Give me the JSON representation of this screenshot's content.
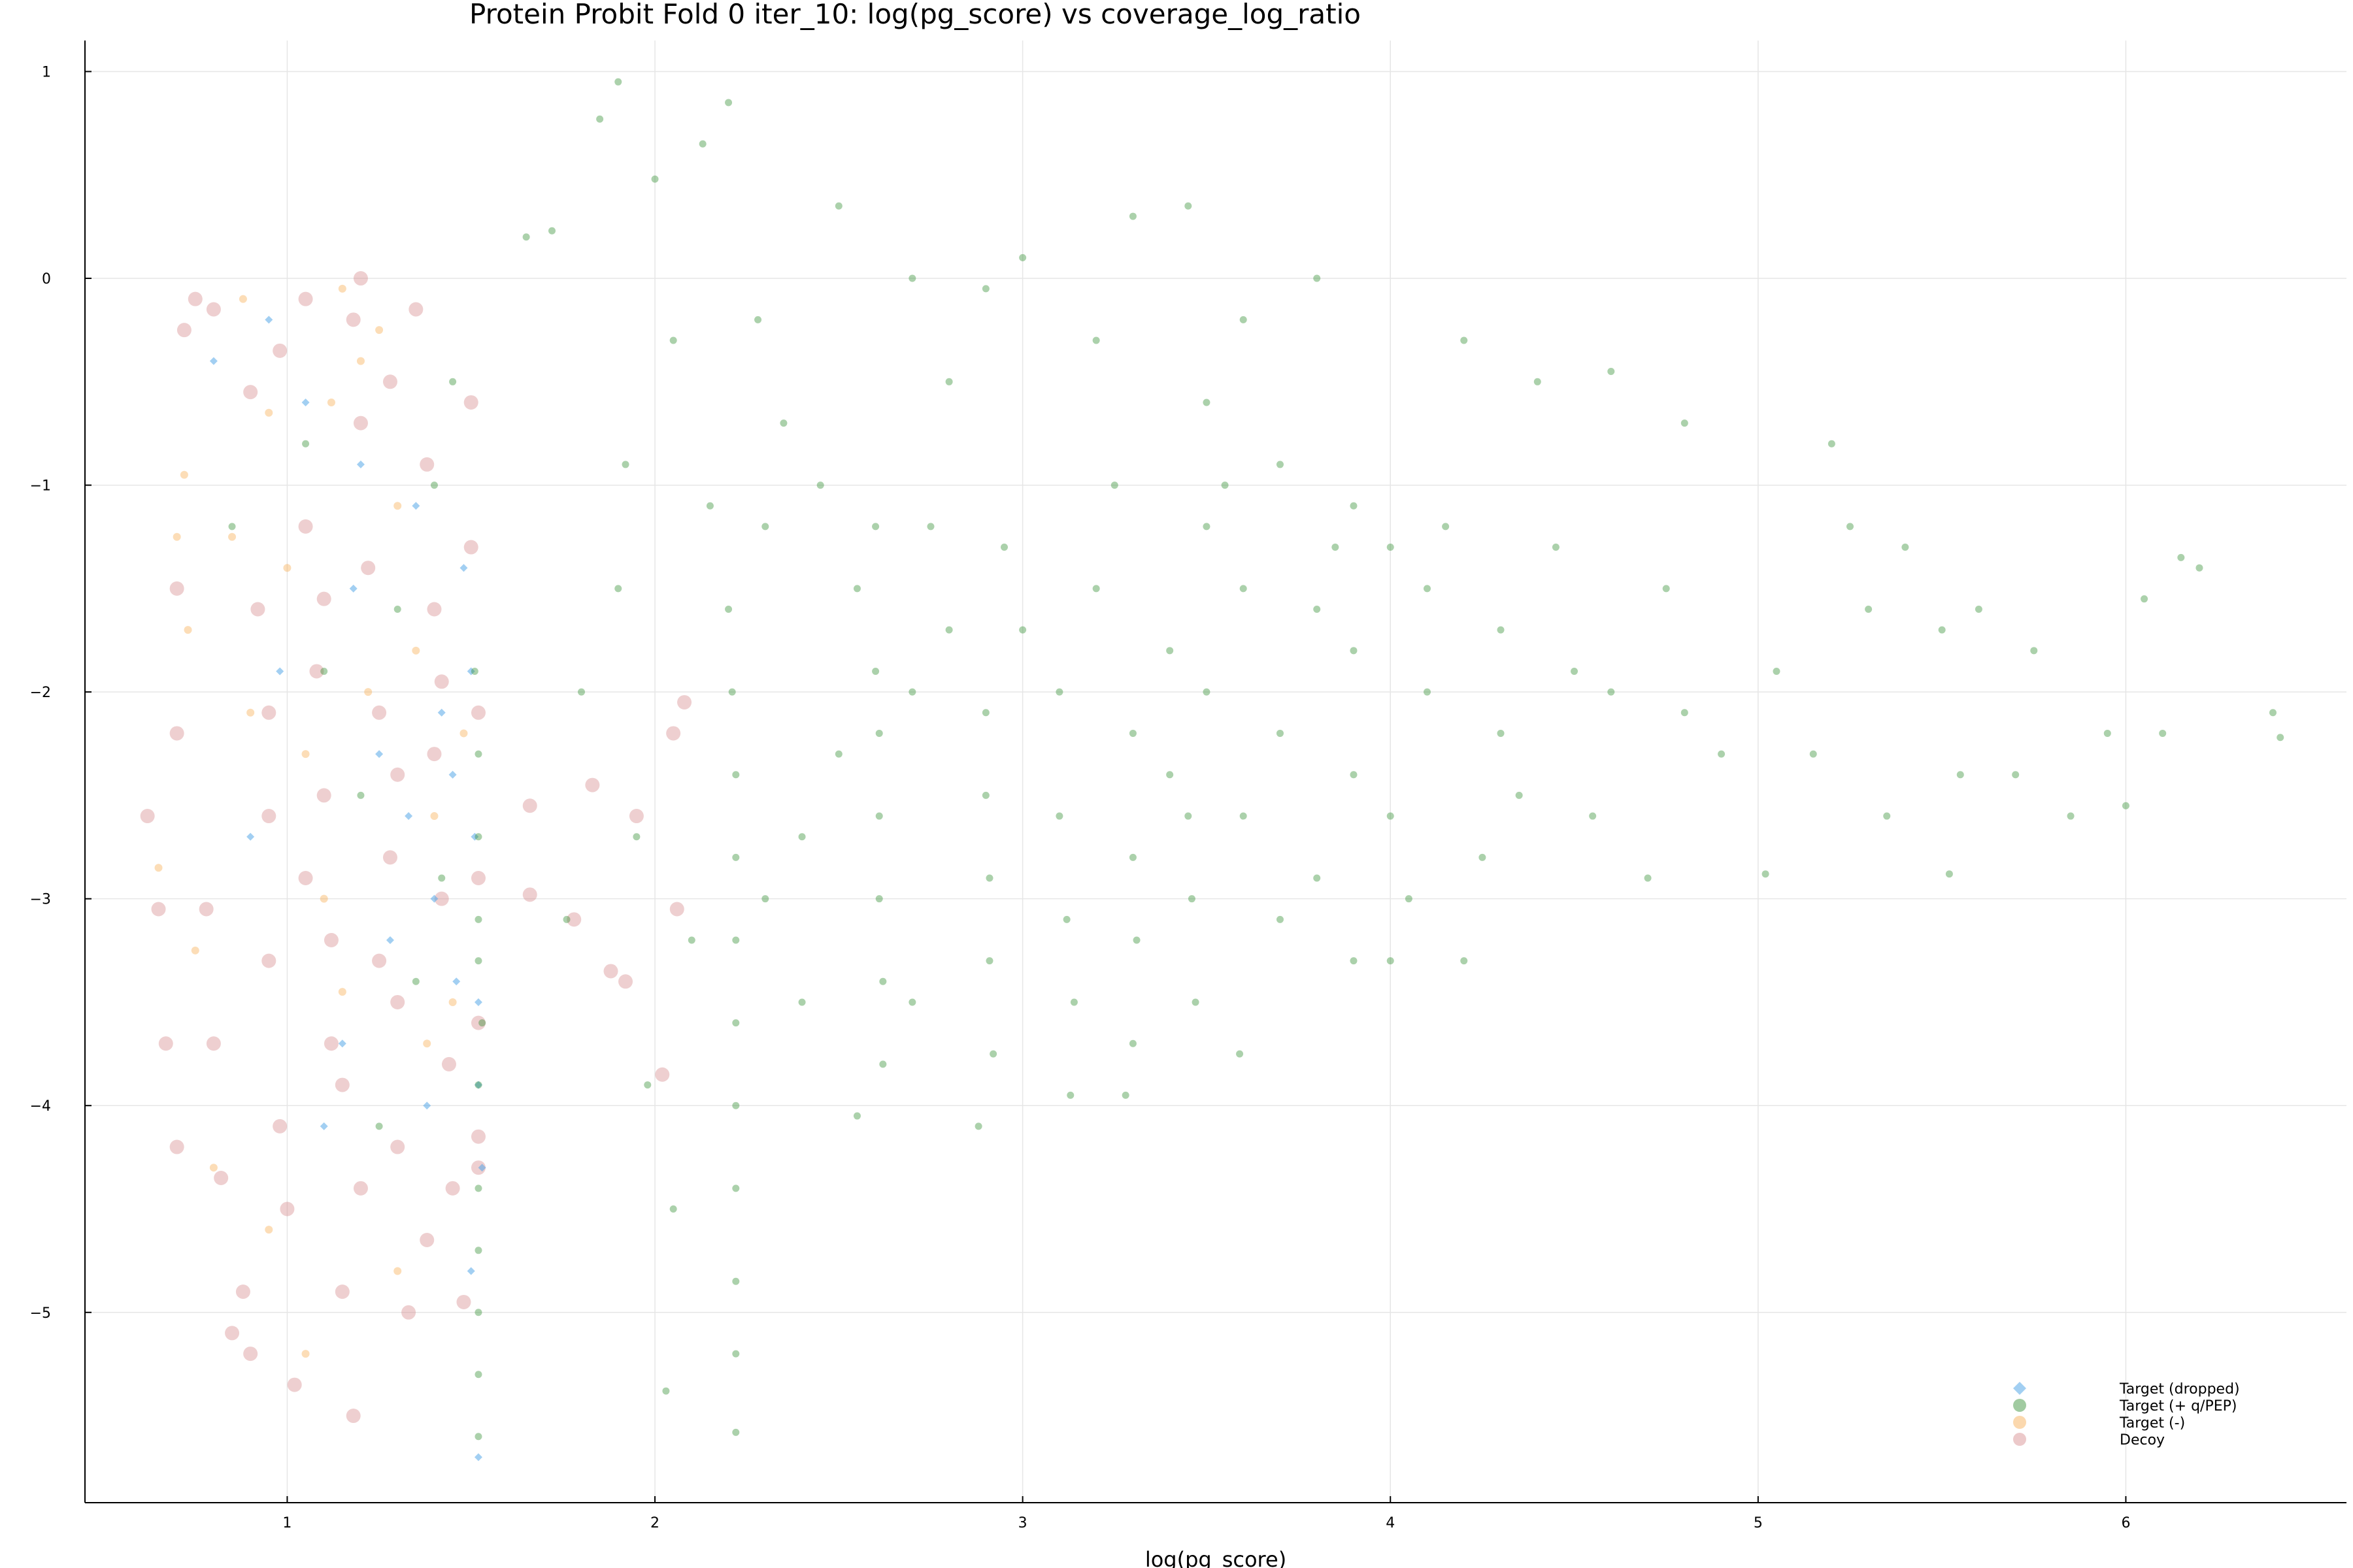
{
  "chart_data": {
    "type": "scatter",
    "title": "Protein Probit Fold 0 iter_10: log(pg_score) vs coverage_log_ratio",
    "xlabel": "log(pg_score)",
    "ylabel": "",
    "xlim": [
      0.45,
      6.6
    ],
    "ylim": [
      -5.92,
      1.15
    ],
    "x_ticks": [
      1,
      2,
      3,
      4,
      5,
      6
    ],
    "x_tick_labels": [
      "1",
      "2",
      "3",
      "4",
      "5",
      "6"
    ],
    "y_ticks": [
      1,
      0,
      -1,
      -2,
      -3,
      -4,
      -5
    ],
    "y_tick_labels": [
      "1",
      "0",
      "−1",
      "−2",
      "−3",
      "−4",
      "−5"
    ],
    "grid": true,
    "legend_position": "bottom-right",
    "series": [
      {
        "name": "Target (dropped)",
        "color": "#56a8e8",
        "marker": "diamond",
        "points": [
          [
            0.95,
            -0.2
          ],
          [
            1.05,
            -0.6
          ],
          [
            1.18,
            -1.5
          ],
          [
            1.25,
            -2.3
          ],
          [
            1.33,
            -2.6
          ],
          [
            1.4,
            -3.0
          ],
          [
            1.45,
            -2.4
          ],
          [
            1.48,
            -1.4
          ],
          [
            1.5,
            -1.9
          ],
          [
            1.51,
            -2.7
          ],
          [
            1.52,
            -3.5
          ],
          [
            1.52,
            -3.9
          ],
          [
            1.53,
            -4.3
          ],
          [
            1.52,
            -5.7
          ],
          [
            1.38,
            -4.0
          ],
          [
            1.28,
            -3.2
          ],
          [
            1.1,
            -4.1
          ],
          [
            0.9,
            -2.7
          ],
          [
            0.8,
            -0.4
          ],
          [
            1.2,
            -0.9
          ],
          [
            1.35,
            -1.1
          ],
          [
            1.46,
            -3.4
          ],
          [
            1.5,
            -4.8
          ],
          [
            1.42,
            -2.1
          ],
          [
            1.15,
            -3.7
          ],
          [
            0.98,
            -1.9
          ]
        ]
      },
      {
        "name": "Target (+ q/PEP)",
        "color": "#2e8b2e",
        "marker": "circle",
        "points": [
          [
            1.9,
            0.95
          ],
          [
            2.2,
            0.85
          ],
          [
            2.13,
            0.65
          ],
          [
            2.0,
            0.48
          ],
          [
            2.5,
            0.35
          ],
          [
            3.3,
            0.3
          ],
          [
            3.45,
            0.35
          ],
          [
            3.0,
            0.1
          ],
          [
            1.65,
            0.2
          ],
          [
            1.72,
            0.23
          ],
          [
            3.8,
            0.0
          ],
          [
            1.85,
            0.77
          ],
          [
            2.28,
            -0.2
          ],
          [
            2.35,
            -0.7
          ],
          [
            2.3,
            -1.2
          ],
          [
            2.2,
            -1.6
          ],
          [
            2.21,
            -2.0
          ],
          [
            2.22,
            -2.4
          ],
          [
            2.22,
            -2.8
          ],
          [
            2.22,
            -3.2
          ],
          [
            2.22,
            -3.6
          ],
          [
            2.22,
            -4.0
          ],
          [
            2.22,
            -4.4
          ],
          [
            2.22,
            -4.85
          ],
          [
            2.22,
            -5.2
          ],
          [
            2.22,
            -5.58
          ],
          [
            2.05,
            -4.5
          ],
          [
            2.03,
            -5.38
          ],
          [
            2.45,
            -1.0
          ],
          [
            2.55,
            -1.5
          ],
          [
            2.6,
            -1.9
          ],
          [
            2.61,
            -2.2
          ],
          [
            2.61,
            -2.6
          ],
          [
            2.61,
            -3.0
          ],
          [
            2.62,
            -3.4
          ],
          [
            2.62,
            -3.8
          ],
          [
            2.55,
            -4.05
          ],
          [
            2.75,
            -1.2
          ],
          [
            2.8,
            -1.7
          ],
          [
            2.9,
            -2.1
          ],
          [
            2.9,
            -2.5
          ],
          [
            2.91,
            -2.9
          ],
          [
            2.91,
            -3.3
          ],
          [
            2.92,
            -3.75
          ],
          [
            2.88,
            -4.1
          ],
          [
            3.1,
            -2.6
          ],
          [
            3.12,
            -3.1
          ],
          [
            3.14,
            -3.5
          ],
          [
            3.13,
            -3.95
          ],
          [
            3.3,
            -2.8
          ],
          [
            3.31,
            -3.2
          ],
          [
            3.3,
            -3.7
          ],
          [
            3.28,
            -3.95
          ],
          [
            3.45,
            -2.6
          ],
          [
            3.46,
            -3.0
          ],
          [
            3.47,
            -3.5
          ],
          [
            3.59,
            -3.75
          ],
          [
            3.7,
            -3.1
          ],
          [
            3.9,
            -3.3
          ],
          [
            4.0,
            -3.3
          ],
          [
            4.2,
            -3.3
          ],
          [
            4.7,
            -2.9
          ],
          [
            5.02,
            -2.88
          ],
          [
            5.52,
            -2.88
          ],
          [
            5.55,
            -2.4
          ],
          [
            5.7,
            -2.4
          ],
          [
            5.75,
            -1.8
          ],
          [
            5.6,
            -1.6
          ],
          [
            5.85,
            -2.6
          ],
          [
            5.95,
            -2.2
          ],
          [
            6.0,
            -2.55
          ],
          [
            6.05,
            -1.55
          ],
          [
            6.1,
            -2.2
          ],
          [
            6.15,
            -1.35
          ],
          [
            6.2,
            -1.4
          ],
          [
            6.4,
            -2.1
          ],
          [
            6.42,
            -2.22
          ],
          [
            5.2,
            -0.8
          ],
          [
            5.25,
            -1.2
          ],
          [
            5.4,
            -1.3
          ],
          [
            5.3,
            -1.6
          ],
          [
            5.5,
            -1.7
          ],
          [
            4.6,
            -0.45
          ],
          [
            4.8,
            -0.7
          ],
          [
            4.4,
            -0.5
          ],
          [
            4.2,
            -0.3
          ],
          [
            3.6,
            -0.2
          ],
          [
            3.2,
            -0.3
          ],
          [
            2.9,
            -0.05
          ],
          [
            2.7,
            0.0
          ],
          [
            2.8,
            -0.5
          ],
          [
            3.5,
            -0.6
          ],
          [
            3.7,
            -0.9
          ],
          [
            3.9,
            -1.1
          ],
          [
            4.0,
            -1.3
          ],
          [
            4.1,
            -1.5
          ],
          [
            4.3,
            -1.7
          ],
          [
            4.5,
            -1.9
          ],
          [
            4.6,
            -2.0
          ],
          [
            4.8,
            -2.1
          ],
          [
            4.9,
            -2.3
          ],
          [
            3.5,
            -1.2
          ],
          [
            3.6,
            -1.5
          ],
          [
            3.8,
            -1.6
          ],
          [
            3.9,
            -1.8
          ],
          [
            4.1,
            -2.0
          ],
          [
            4.3,
            -2.2
          ],
          [
            3.2,
            -1.5
          ],
          [
            3.4,
            -1.8
          ],
          [
            3.0,
            -1.7
          ],
          [
            3.1,
            -2.0
          ],
          [
            3.3,
            -2.2
          ],
          [
            3.5,
            -2.0
          ],
          [
            3.7,
            -2.2
          ],
          [
            3.9,
            -2.4
          ],
          [
            4.0,
            -2.6
          ],
          [
            3.6,
            -2.6
          ],
          [
            3.8,
            -2.9
          ],
          [
            3.4,
            -2.4
          ],
          [
            2.7,
            -2.0
          ],
          [
            2.5,
            -2.3
          ],
          [
            2.4,
            -2.7
          ],
          [
            2.3,
            -3.0
          ],
          [
            2.4,
            -3.5
          ],
          [
            2.7,
            -3.5
          ],
          [
            2.6,
            -1.2
          ],
          [
            2.95,
            -1.3
          ],
          [
            3.25,
            -1.0
          ],
          [
            3.55,
            -1.0
          ],
          [
            3.85,
            -1.3
          ],
          [
            4.15,
            -1.2
          ],
          [
            4.45,
            -1.3
          ],
          [
            4.75,
            -1.5
          ],
          [
            5.05,
            -1.9
          ],
          [
            5.15,
            -2.3
          ],
          [
            5.35,
            -2.6
          ],
          [
            4.35,
            -2.5
          ],
          [
            4.55,
            -2.6
          ],
          [
            4.25,
            -2.8
          ],
          [
            4.05,
            -3.0
          ],
          [
            1.51,
            -1.9
          ],
          [
            1.52,
            -2.3
          ],
          [
            1.52,
            -2.7
          ],
          [
            1.52,
            -3.1
          ],
          [
            1.52,
            -3.3
          ],
          [
            1.53,
            -3.6
          ],
          [
            1.52,
            -3.9
          ],
          [
            1.52,
            -4.4
          ],
          [
            1.52,
            -4.7
          ],
          [
            1.52,
            -5.0
          ],
          [
            1.52,
            -5.3
          ],
          [
            1.52,
            -5.6
          ],
          [
            1.45,
            -0.5
          ],
          [
            1.4,
            -1.0
          ],
          [
            1.3,
            -1.6
          ],
          [
            1.2,
            -2.5
          ],
          [
            1.35,
            -3.4
          ],
          [
            1.25,
            -4.1
          ],
          [
            1.42,
            -2.9
          ],
          [
            1.1,
            -1.9
          ],
          [
            1.05,
            -0.8
          ],
          [
            0.85,
            -1.2
          ],
          [
            1.76,
            -3.1
          ],
          [
            1.8,
            -2.0
          ],
          [
            1.9,
            -1.5
          ],
          [
            1.95,
            -2.7
          ],
          [
            1.98,
            -3.9
          ],
          [
            2.1,
            -3.2
          ],
          [
            2.15,
            -1.1
          ],
          [
            2.05,
            -0.3
          ],
          [
            1.92,
            -0.9
          ]
        ]
      },
      {
        "name": "Target (-)",
        "color": "#f7a94b",
        "marker": "circle",
        "points": [
          [
            0.72,
            -0.95
          ],
          [
            0.7,
            -1.25
          ],
          [
            0.73,
            -1.7
          ],
          [
            0.85,
            -1.25
          ],
          [
            0.9,
            -2.1
          ],
          [
            1.0,
            -1.4
          ],
          [
            1.05,
            -2.3
          ],
          [
            1.1,
            -3.0
          ],
          [
            1.15,
            -3.45
          ],
          [
            1.2,
            -0.4
          ],
          [
            1.25,
            -0.25
          ],
          [
            1.3,
            -1.1
          ],
          [
            1.35,
            -1.8
          ],
          [
            1.4,
            -2.6
          ],
          [
            1.45,
            -3.5
          ],
          [
            0.75,
            -3.25
          ],
          [
            0.8,
            -4.3
          ],
          [
            0.95,
            -4.6
          ],
          [
            1.05,
            -5.2
          ],
          [
            1.3,
            -4.8
          ],
          [
            0.65,
            -2.85
          ],
          [
            0.88,
            -0.1
          ],
          [
            1.12,
            -0.6
          ],
          [
            1.22,
            -2.0
          ],
          [
            1.38,
            -3.7
          ],
          [
            0.95,
            -0.65
          ],
          [
            1.48,
            -2.2
          ],
          [
            1.15,
            -0.05
          ]
        ]
      },
      {
        "name": "Decoy",
        "color": "#d4878a",
        "marker": "circle",
        "points": [
          [
            0.62,
            -2.6
          ],
          [
            0.65,
            -3.05
          ],
          [
            0.67,
            -3.7
          ],
          [
            0.7,
            -4.2
          ],
          [
            0.7,
            -2.2
          ],
          [
            0.7,
            -1.5
          ],
          [
            0.72,
            -0.25
          ],
          [
            0.75,
            -0.1
          ],
          [
            0.8,
            -0.15
          ],
          [
            0.78,
            -3.05
          ],
          [
            0.8,
            -3.7
          ],
          [
            0.82,
            -4.35
          ],
          [
            0.85,
            -5.1
          ],
          [
            0.88,
            -4.9
          ],
          [
            0.9,
            -5.2
          ],
          [
            0.9,
            -0.55
          ],
          [
            0.92,
            -1.6
          ],
          [
            0.95,
            -2.1
          ],
          [
            0.95,
            -3.3
          ],
          [
            0.98,
            -4.1
          ],
          [
            1.0,
            -4.5
          ],
          [
            1.02,
            -5.35
          ],
          [
            1.05,
            -0.1
          ],
          [
            1.05,
            -1.2
          ],
          [
            1.08,
            -1.9
          ],
          [
            1.1,
            -2.5
          ],
          [
            1.12,
            -3.2
          ],
          [
            1.15,
            -3.9
          ],
          [
            1.15,
            -4.9
          ],
          [
            1.18,
            -5.5
          ],
          [
            1.2,
            0.0
          ],
          [
            1.2,
            -0.7
          ],
          [
            1.22,
            -1.4
          ],
          [
            1.25,
            -2.1
          ],
          [
            1.28,
            -2.8
          ],
          [
            1.3,
            -3.5
          ],
          [
            1.3,
            -4.2
          ],
          [
            1.33,
            -5.0
          ],
          [
            1.35,
            -0.15
          ],
          [
            1.38,
            -0.9
          ],
          [
            1.4,
            -1.6
          ],
          [
            1.4,
            -2.3
          ],
          [
            1.42,
            -3.0
          ],
          [
            1.44,
            -3.8
          ],
          [
            1.45,
            -4.4
          ],
          [
            1.48,
            -4.95
          ],
          [
            1.5,
            -0.6
          ],
          [
            1.5,
            -1.3
          ],
          [
            1.52,
            -2.1
          ],
          [
            1.52,
            -2.9
          ],
          [
            1.52,
            -3.6
          ],
          [
            1.52,
            -4.15
          ],
          [
            1.52,
            -4.3
          ],
          [
            1.66,
            -2.55
          ],
          [
            1.66,
            -2.98
          ],
          [
            1.78,
            -3.1
          ],
          [
            1.83,
            -2.45
          ],
          [
            1.88,
            -3.35
          ],
          [
            1.95,
            -2.6
          ],
          [
            1.92,
            -3.4
          ],
          [
            2.02,
            -3.85
          ],
          [
            2.05,
            -2.2
          ],
          [
            2.08,
            -2.05
          ],
          [
            2.06,
            -3.05
          ],
          [
            1.12,
            -3.7
          ],
          [
            1.2,
            -4.4
          ],
          [
            1.3,
            -2.4
          ],
          [
            1.05,
            -2.9
          ],
          [
            0.95,
            -2.6
          ],
          [
            1.18,
            -0.2
          ],
          [
            1.28,
            -0.5
          ],
          [
            1.42,
            -1.95
          ],
          [
            1.25,
            -3.3
          ],
          [
            1.38,
            -4.65
          ],
          [
            0.98,
            -0.35
          ],
          [
            1.1,
            -1.55
          ]
        ]
      }
    ]
  }
}
